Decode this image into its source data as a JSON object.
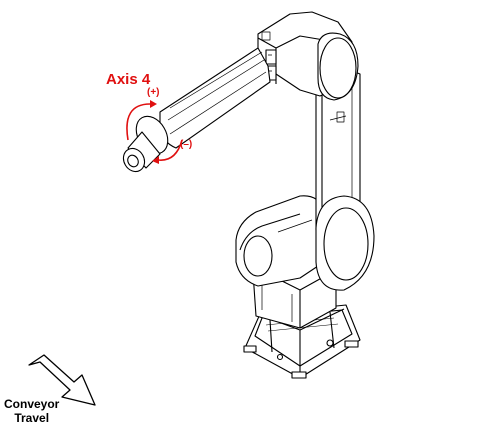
{
  "labels": {
    "axis_title": "Axis 4",
    "axis_plus": "(+)",
    "axis_minus": "(–)",
    "conveyor_line1": "Conveyor",
    "conveyor_line2": "Travel"
  },
  "colors": {
    "annotation": "#e01010",
    "line": "#000000",
    "background": "#ffffff"
  },
  "icons": {
    "rotation_arrows": "curved-arrow-icon",
    "conveyor_arrow": "arrow-down-right-icon"
  }
}
